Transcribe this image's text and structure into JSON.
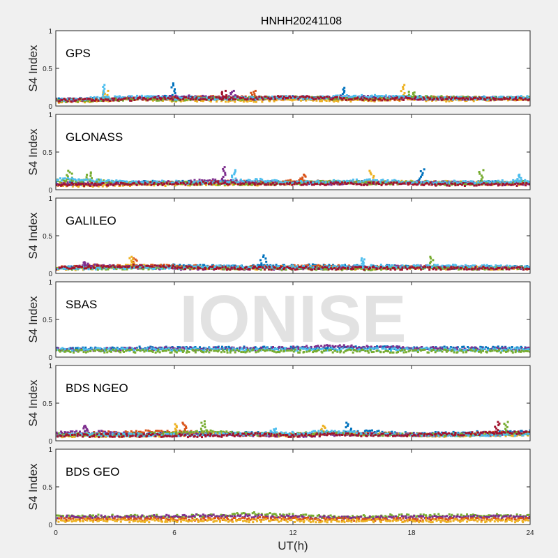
{
  "chart_data": {
    "type": "scatter",
    "title": "HNHH20241108",
    "xlabel": "UT(h)",
    "ylabel": "S4 Index",
    "xlim": [
      0,
      24
    ],
    "ylim": [
      0,
      1
    ],
    "xticks": [
      "0",
      "6",
      "12",
      "18",
      "24"
    ],
    "yticks": [
      "0",
      "0.5",
      "1"
    ],
    "watermark": "IONISE",
    "colors": {
      "blue": "#0072BD",
      "orange": "#D95319",
      "yellow": "#EDB120",
      "purple": "#7E2F8E",
      "green": "#77AC30",
      "cyan": "#4DBEEE",
      "red": "#A2142F"
    },
    "panels": [
      {
        "label": "GPS",
        "series": [
          {
            "color": "#0072BD",
            "hourly_s4": [
              0.08,
              0.09,
              0.1,
              0.12,
              0.1,
              0.09,
              0.12,
              0.1,
              0.11,
              0.12,
              0.1,
              0.11,
              0.1
            ],
            "peaks": [
              [
                6,
                0.3
              ],
              [
                14.5,
                0.24
              ]
            ]
          },
          {
            "color": "#D95319",
            "hourly_s4": [
              0.07,
              0.08,
              0.1,
              0.1,
              0.12,
              0.11,
              0.1,
              0.1,
              0.09,
              0.1,
              0.11,
              0.1,
              0.09
            ],
            "peaks": [
              [
                10,
                0.2
              ]
            ]
          },
          {
            "color": "#EDB120",
            "hourly_s4": [
              0.06,
              0.07,
              0.1,
              0.08,
              0.08,
              0.07,
              0.09,
              0.08,
              0.08,
              0.09,
              0.08,
              0.09,
              0.1
            ],
            "peaks": [
              [
                17.5,
                0.28
              ],
              [
                2.5,
                0.2
              ]
            ]
          },
          {
            "color": "#7E2F8E",
            "hourly_s4": [
              0.08,
              0.09,
              0.11,
              0.12,
              0.12,
              0.1,
              0.11,
              0.11,
              0.12,
              0.1,
              0.1,
              0.1,
              0.1
            ],
            "peaks": [
              [
                9,
                0.2
              ]
            ]
          },
          {
            "color": "#77AC30",
            "hourly_s4": [
              0.07,
              0.08,
              0.09,
              0.09,
              0.1,
              0.1,
              0.11,
              0.1,
              0.1,
              0.12,
              0.11,
              0.1,
              0.11
            ],
            "peaks": [
              [
                18,
                0.19
              ]
            ]
          },
          {
            "color": "#4DBEEE",
            "hourly_s4": [
              0.08,
              0.1,
              0.12,
              0.1,
              0.1,
              0.11,
              0.1,
              0.12,
              0.13,
              0.11,
              0.1,
              0.1,
              0.12
            ],
            "peaks": [
              [
                2.5,
                0.28
              ]
            ]
          },
          {
            "color": "#A2142F",
            "hourly_s4": [
              0.08,
              0.08,
              0.09,
              0.1,
              0.1,
              0.1,
              0.12,
              0.1,
              0.09,
              0.1,
              0.1,
              0.09,
              0.1
            ],
            "peaks": [
              [
                8.5,
                0.2
              ]
            ]
          }
        ]
      },
      {
        "label": "GLONASS",
        "series": [
          {
            "color": "#0072BD",
            "hourly_s4": [
              0.08,
              0.08,
              0.1,
              0.1,
              0.1,
              0.1,
              0.09,
              0.1,
              0.1,
              0.1,
              0.09,
              0.1,
              0.1
            ],
            "peaks": [
              [
                18.5,
                0.27
              ]
            ]
          },
          {
            "color": "#D95319",
            "hourly_s4": [
              0.07,
              0.08,
              0.08,
              0.09,
              0.1,
              0.1,
              0.11,
              0.1,
              0.09,
              0.09,
              0.08,
              0.08,
              0.08
            ],
            "peaks": [
              [
                12.5,
                0.2
              ]
            ]
          },
          {
            "color": "#EDB120",
            "hourly_s4": [
              0.06,
              0.06,
              0.07,
              0.07,
              0.08,
              0.07,
              0.09,
              0.1,
              0.09,
              0.1,
              0.1,
              0.08,
              0.07
            ],
            "peaks": [
              [
                16,
                0.25
              ]
            ]
          },
          {
            "color": "#7E2F8E",
            "hourly_s4": [
              0.08,
              0.08,
              0.09,
              0.1,
              0.12,
              0.1,
              0.09,
              0.08,
              0.09,
              0.1,
              0.09,
              0.08,
              0.08
            ],
            "peaks": [
              [
                8.5,
                0.3
              ]
            ]
          },
          {
            "color": "#77AC30",
            "hourly_s4": [
              0.12,
              0.12,
              0.09,
              0.09,
              0.08,
              0.08,
              0.09,
              0.1,
              0.09,
              0.09,
              0.08,
              0.09,
              0.1
            ],
            "peaks": [
              [
                0.7,
                0.25
              ],
              [
                1.7,
                0.23
              ],
              [
                21.5,
                0.26
              ]
            ]
          },
          {
            "color": "#4DBEEE",
            "hourly_s4": [
              0.14,
              0.12,
              0.1,
              0.1,
              0.09,
              0.13,
              0.1,
              0.11,
              0.12,
              0.1,
              0.1,
              0.1,
              0.12
            ],
            "peaks": [
              [
                9,
                0.26
              ],
              [
                23.5,
                0.2
              ]
            ]
          },
          {
            "color": "#A2142F",
            "hourly_s4": [
              0.07,
              0.07,
              0.08,
              0.08,
              0.09,
              0.08,
              0.08,
              0.08,
              0.08,
              0.08,
              0.07,
              0.07,
              0.07
            ],
            "peaks": []
          }
        ]
      },
      {
        "label": "GALILEO",
        "series": [
          {
            "color": "#0072BD",
            "hourly_s4": [
              0.07,
              0.08,
              0.09,
              0.1,
              0.09,
              0.09,
              0.1,
              0.1,
              0.09,
              0.09,
              0.08,
              0.08,
              0.08
            ],
            "peaks": [
              [
                10.5,
                0.24
              ]
            ]
          },
          {
            "color": "#D95319",
            "hourly_s4": [
              0.07,
              0.1,
              0.09,
              0.1,
              0.08,
              0.08,
              0.09,
              0.09,
              0.08,
              0.08,
              0.08,
              0.08,
              0.07
            ],
            "peaks": [
              [
                4,
                0.2
              ]
            ]
          },
          {
            "color": "#EDB120",
            "hourly_s4": [
              0.06,
              0.07,
              0.1,
              0.08,
              0.07,
              0.07,
              0.08,
              0.07,
              0.07,
              0.08,
              0.07,
              0.07,
              0.07
            ],
            "peaks": [
              [
                3.8,
                0.22
              ]
            ]
          },
          {
            "color": "#7E2F8E",
            "hourly_s4": [
              0.07,
              0.1,
              0.08,
              0.07,
              0.07,
              0.07,
              0.07,
              0.07,
              0.08,
              0.09,
              0.08,
              0.07,
              0.07
            ],
            "peaks": [
              [
                1.5,
                0.15
              ]
            ]
          },
          {
            "color": "#77AC30",
            "hourly_s4": [
              0.07,
              0.07,
              0.07,
              0.07,
              0.07,
              0.07,
              0.06,
              0.06,
              0.06,
              0.08,
              0.07,
              0.07,
              0.08
            ],
            "peaks": [
              [
                19,
                0.22
              ]
            ]
          },
          {
            "color": "#4DBEEE",
            "hourly_s4": [
              0.08,
              0.07,
              0.08,
              0.08,
              0.09,
              0.08,
              0.08,
              0.08,
              0.1,
              0.09,
              0.1,
              0.09,
              0.08
            ],
            "peaks": [
              [
                15.5,
                0.2
              ]
            ]
          },
          {
            "color": "#A2142F",
            "hourly_s4": [
              0.07,
              0.09,
              0.1,
              0.08,
              0.07,
              0.07,
              0.07,
              0.07,
              0.07,
              0.07,
              0.07,
              0.07,
              0.07
            ],
            "peaks": []
          }
        ]
      },
      {
        "label": "SBAS",
        "series": [
          {
            "color": "#0072BD",
            "hourly_s4": [
              0.11,
              0.11,
              0.12,
              0.12,
              0.12,
              0.12,
              0.12,
              0.12,
              0.13,
              0.12,
              0.12,
              0.12,
              0.12
            ],
            "peaks": []
          },
          {
            "color": "#7E2F8E",
            "hourly_s4": [
              0.1,
              0.1,
              0.11,
              0.11,
              0.11,
              0.11,
              0.12,
              0.15,
              0.13,
              0.12,
              0.11,
              0.11,
              0.11
            ],
            "peaks": []
          },
          {
            "color": "#4DBEEE",
            "hourly_s4": [
              0.1,
              0.1,
              0.1,
              0.1,
              0.1,
              0.1,
              0.1,
              0.1,
              0.1,
              0.1,
              0.1,
              0.1,
              0.1
            ],
            "peaks": []
          },
          {
            "color": "#77AC30",
            "hourly_s4": [
              0.08,
              0.08,
              0.08,
              0.08,
              0.08,
              0.08,
              0.08,
              0.08,
              0.08,
              0.08,
              0.08,
              0.08,
              0.08
            ],
            "peaks": []
          }
        ]
      },
      {
        "label": "BDS NGEO",
        "series": [
          {
            "color": "#0072BD",
            "hourly_s4": [
              0.08,
              0.08,
              0.09,
              0.1,
              0.1,
              0.1,
              0.08,
              0.1,
              0.12,
              0.09,
              0.1,
              0.11,
              0.12
            ],
            "peaks": [
              [
                14.8,
                0.24
              ]
            ]
          },
          {
            "color": "#D95319",
            "hourly_s4": [
              0.08,
              0.1,
              0.12,
              0.12,
              0.1,
              0.09,
              0.08,
              0.09,
              0.1,
              0.08,
              0.08,
              0.1,
              0.1
            ],
            "peaks": [
              [
                6.5,
                0.24
              ]
            ]
          },
          {
            "color": "#EDB120",
            "hourly_s4": [
              0.06,
              0.07,
              0.07,
              0.08,
              0.1,
              0.08,
              0.07,
              0.1,
              0.09,
              0.08,
              0.07,
              0.08,
              0.08
            ],
            "peaks": [
              [
                6,
                0.22
              ],
              [
                13.5,
                0.2
              ]
            ]
          },
          {
            "color": "#7E2F8E",
            "hourly_s4": [
              0.1,
              0.12,
              0.08,
              0.08,
              0.09,
              0.08,
              0.07,
              0.08,
              0.09,
              0.08,
              0.08,
              0.09,
              0.1
            ],
            "peaks": [
              [
                1.5,
                0.2
              ]
            ]
          },
          {
            "color": "#77AC30",
            "hourly_s4": [
              0.08,
              0.08,
              0.08,
              0.1,
              0.12,
              0.09,
              0.09,
              0.1,
              0.09,
              0.08,
              0.08,
              0.09,
              0.1
            ],
            "peaks": [
              [
                7.5,
                0.26
              ],
              [
                22.8,
                0.25
              ]
            ]
          },
          {
            "color": "#4DBEEE",
            "hourly_s4": [
              0.08,
              0.08,
              0.08,
              0.08,
              0.08,
              0.1,
              0.1,
              0.12,
              0.09,
              0.08,
              0.08,
              0.08,
              0.08
            ],
            "peaks": [
              [
                11,
                0.16
              ]
            ]
          },
          {
            "color": "#A2142F",
            "hourly_s4": [
              0.07,
              0.07,
              0.07,
              0.07,
              0.07,
              0.08,
              0.07,
              0.08,
              0.08,
              0.08,
              0.09,
              0.1,
              0.11
            ],
            "peaks": [
              [
                22.3,
                0.25
              ]
            ]
          }
        ]
      },
      {
        "label": "BDS GEO",
        "series": [
          {
            "color": "#77AC30",
            "hourly_s4": [
              0.11,
              0.11,
              0.11,
              0.11,
              0.12,
              0.15,
              0.12,
              0.1,
              0.11,
              0.12,
              0.12,
              0.12,
              0.11
            ],
            "peaks": []
          },
          {
            "color": "#7E2F8E",
            "hourly_s4": [
              0.1,
              0.1,
              0.1,
              0.11,
              0.12,
              0.11,
              0.1,
              0.09,
              0.09,
              0.1,
              0.1,
              0.1,
              0.1
            ],
            "peaks": []
          },
          {
            "color": "#D95319",
            "hourly_s4": [
              0.07,
              0.07,
              0.07,
              0.07,
              0.07,
              0.08,
              0.08,
              0.07,
              0.07,
              0.07,
              0.07,
              0.07,
              0.07
            ],
            "peaks": []
          },
          {
            "color": "#EDB120",
            "hourly_s4": [
              0.05,
              0.05,
              0.05,
              0.05,
              0.05,
              0.05,
              0.05,
              0.05,
              0.05,
              0.05,
              0.05,
              0.05,
              0.05
            ],
            "peaks": []
          }
        ]
      }
    ]
  }
}
